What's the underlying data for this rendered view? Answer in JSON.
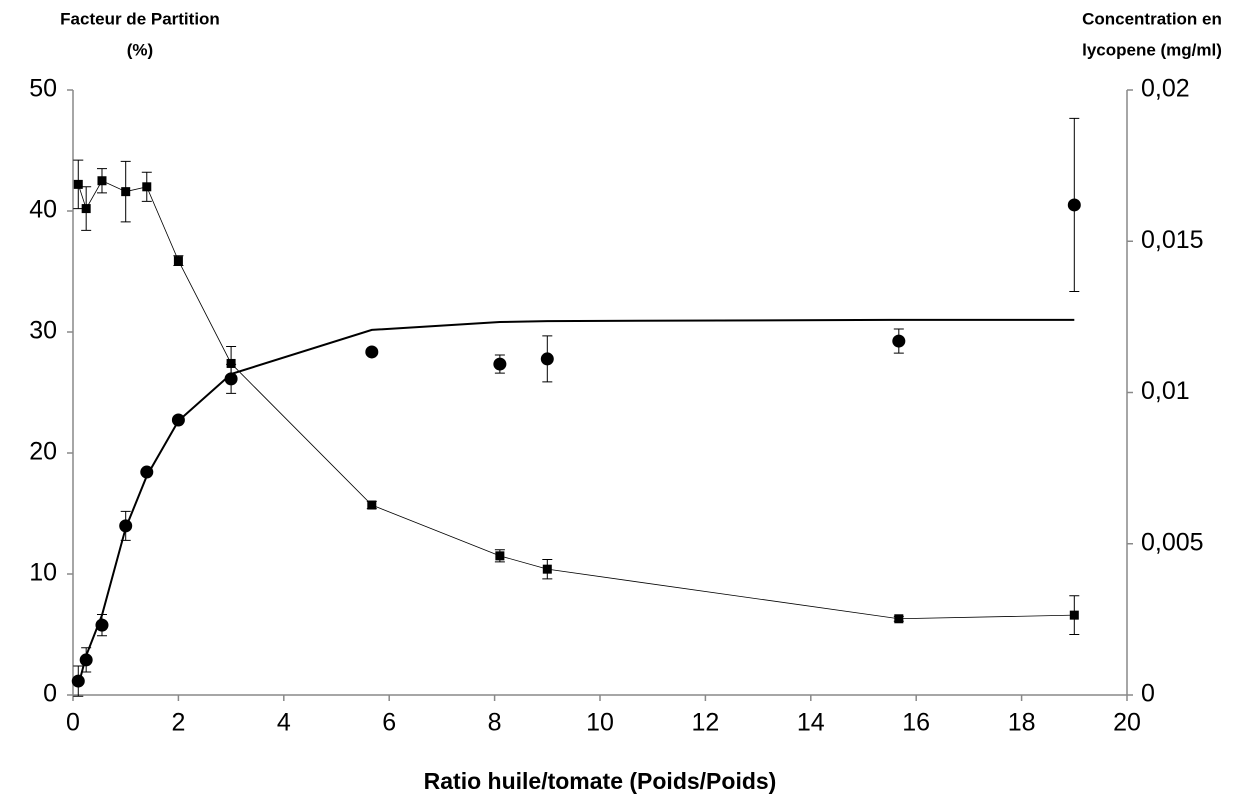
{
  "chart_data": {
    "type": "line",
    "ylabel": [
      "Facteur de Partition",
      "(%)"
    ],
    "y2label": [
      "Concentration en",
      "lycopene  (mg/ml)"
    ],
    "xlabel": "Ratio huile/tomate (Poids/Poids)",
    "xlim": [
      0,
      20
    ],
    "xticks": [
      0,
      2,
      4,
      6,
      8,
      10,
      12,
      14,
      16,
      18,
      20
    ],
    "ylim": [
      0,
      50
    ],
    "yticks": [
      0,
      10,
      20,
      30,
      40,
      50
    ],
    "y2lim": [
      0,
      0.02
    ],
    "y2ticks": [
      0,
      {
        "value": 0.005,
        "label": "0,005"
      },
      {
        "value": 0.01,
        "label": "0,01"
      },
      {
        "value": 0.015,
        "label": "0,015"
      },
      {
        "value": 0.02,
        "label": "0,02"
      }
    ],
    "grid": false,
    "series": [
      {
        "color": "#000000",
        "marker": "square",
        "line": "thin",
        "axis": "y",
        "x": [
          0.1,
          0.25,
          0.55,
          1.0,
          1.4,
          2.0,
          3.0,
          5.67,
          8.1,
          9.0,
          15.67,
          19.0
        ],
        "values": [
          42.2,
          40.2,
          42.5,
          41.6,
          42.0,
          35.9,
          27.4,
          15.7,
          11.5,
          10.4,
          6.3,
          6.6
        ],
        "errors": [
          2.0,
          1.8,
          1.0,
          2.5,
          1.2,
          0.4,
          1.4,
          0.3,
          0.5,
          0.8,
          0.2,
          1.6
        ]
      },
      {
        "color": "#000000",
        "marker": "circle",
        "line": "none",
        "axis": "y2",
        "x": [
          0.1,
          0.25,
          0.55,
          1.0,
          1.4,
          2.0,
          3.0,
          5.67,
          8.1,
          9.0,
          15.67,
          19.0
        ],
        "values": [
          0.00046,
          0.00116,
          0.00231,
          0.00559,
          0.00737,
          0.00909,
          0.01045,
          0.01134,
          0.01094,
          0.01111,
          0.0117,
          0.0162
        ],
        "errors": [
          0.0005,
          0.0004,
          0.00035,
          0.00048,
          0.0001,
          0.0,
          0.00048,
          0.0,
          0.0003,
          0.00076,
          0.0004,
          0.00286
        ]
      },
      {
        "color": "#000000",
        "marker": "none",
        "line": "thick",
        "axis": "y2",
        "x": [
          0.1,
          0.25,
          0.55,
          1.0,
          1.4,
          2.0,
          3.0,
          5.67,
          8.1,
          9.0,
          15.67,
          19.0
        ],
        "values": [
          0.0003,
          0.0013,
          0.00264,
          0.00552,
          0.00724,
          0.00906,
          0.01061,
          0.01207,
          0.01233,
          0.01236,
          0.0124,
          0.0124
        ]
      }
    ]
  }
}
